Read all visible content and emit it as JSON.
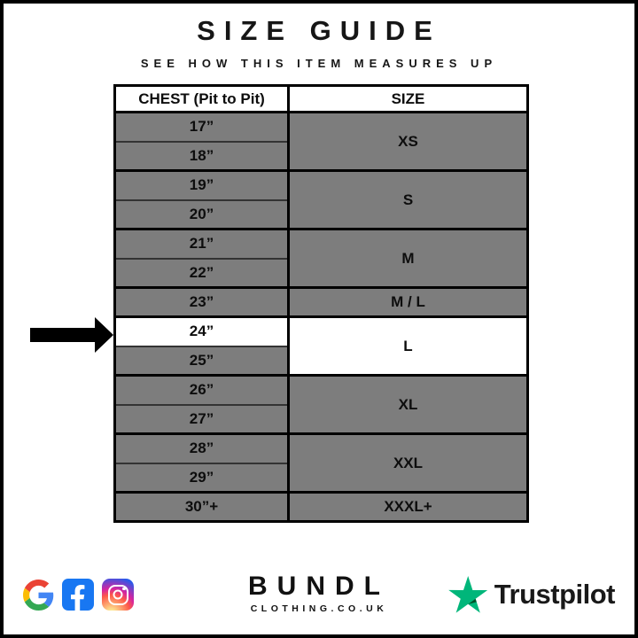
{
  "header": {
    "title": "SIZE GUIDE",
    "subtitle": "SEE HOW THIS ITEM MEASURES UP"
  },
  "chart_data": {
    "type": "table",
    "title": "SIZE GUIDE",
    "subtitle": "SEE HOW THIS ITEM MEASURES UP",
    "columns": [
      "CHEST (Pit to Pit)",
      "SIZE"
    ],
    "mappings": [
      {
        "chest": [
          "17”",
          "18”"
        ],
        "size": "XS"
      },
      {
        "chest": [
          "19”",
          "20”"
        ],
        "size": "S"
      },
      {
        "chest": [
          "21”",
          "22”"
        ],
        "size": "M"
      },
      {
        "chest": [
          "23”"
        ],
        "size": "M / L"
      },
      {
        "chest": [
          "24”",
          "25”"
        ],
        "size": "L",
        "highlighted": true
      },
      {
        "chest": [
          "26”",
          "27”"
        ],
        "size": "XL"
      },
      {
        "chest": [
          "28”",
          "29”"
        ],
        "size": "XXL"
      },
      {
        "chest": [
          "30”+"
        ],
        "size": "XXXL+"
      }
    ],
    "highlighted_chest": "24”",
    "highlighted_size": "L"
  },
  "footer": {
    "brand": {
      "name": "BUNDL",
      "domain": "CLOTHING.CO.UK"
    },
    "social_icons": [
      "google-icon",
      "facebook-icon",
      "instagram-icon"
    ],
    "trustpilot_label": "Trustpilot"
  },
  "colors": {
    "cell_gray": "#7d7d7d",
    "highlight_white": "#ffffff",
    "border_black": "#000000",
    "trustpilot_green": "#00b67a",
    "trustpilot_dark_green": "#005128",
    "facebook_blue": "#1877f2"
  }
}
